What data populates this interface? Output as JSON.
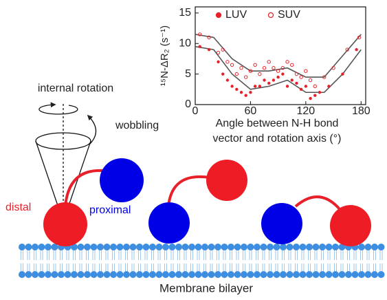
{
  "chart_data": {
    "type": "scatter",
    "y_label": "¹⁵N-ΔR₂ (s⁻¹)",
    "x_label": [
      "Angle between N-H bond",
      "vector and rotation axis (°)"
    ],
    "xlim": [
      0,
      185
    ],
    "xticks": [
      0,
      60,
      120,
      180
    ],
    "ylim": [
      0,
      16
    ],
    "yticks": [
      0,
      5,
      10,
      15
    ],
    "legend": "top",
    "series": [
      {
        "name": "LUV",
        "color": "#e8202a",
        "marker": "filled",
        "x": [
          5,
          15,
          25,
          30,
          35,
          40,
          45,
          50,
          55,
          60,
          65,
          70,
          75,
          80,
          85,
          90,
          95,
          100,
          105,
          110,
          115,
          120,
          125,
          130,
          135,
          145,
          160,
          175
        ],
        "values": [
          9.5,
          9,
          7,
          5,
          4,
          3,
          2.5,
          2,
          1.5,
          2,
          3,
          3,
          4,
          3.5,
          4,
          4.5,
          5,
          3,
          4,
          3.5,
          2.5,
          3,
          1,
          1.5,
          2,
          3,
          5,
          9
        ]
      },
      {
        "name": "SUV",
        "color": "#e8202a",
        "marker": "open",
        "x": [
          5,
          15,
          25,
          30,
          35,
          40,
          45,
          50,
          55,
          60,
          65,
          70,
          75,
          80,
          85,
          90,
          95,
          100,
          105,
          110,
          115,
          120,
          125,
          130,
          140,
          150,
          165,
          178
        ],
        "values": [
          11.5,
          11,
          8.5,
          9,
          7,
          6.5,
          5,
          6,
          4.5,
          5.5,
          6.5,
          5,
          6,
          7,
          6,
          5.5,
          6,
          7,
          6.5,
          5,
          4.5,
          5.5,
          4,
          3,
          4.5,
          6,
          9,
          11
        ]
      }
    ],
    "fit_lines": [
      {
        "color": "#555555",
        "x": [
          0,
          20,
          40,
          60,
          80,
          100,
          120,
          140,
          160,
          180
        ],
        "values": [
          11.5,
          11,
          7.5,
          5.5,
          5.5,
          6,
          4.5,
          4.5,
          8,
          11.5
        ]
      },
      {
        "color": "#555555",
        "x": [
          0,
          20,
          40,
          60,
          80,
          100,
          120,
          140,
          160,
          180
        ],
        "values": [
          9.5,
          9,
          5,
          2.5,
          3,
          4,
          2,
          2,
          5,
          9
        ]
      }
    ]
  },
  "labels": {
    "internal_rotation": "internal rotation",
    "wobbling": "wobbling",
    "distal": "distal",
    "proximal": "proximal",
    "membrane": "Membrane bilayer"
  }
}
